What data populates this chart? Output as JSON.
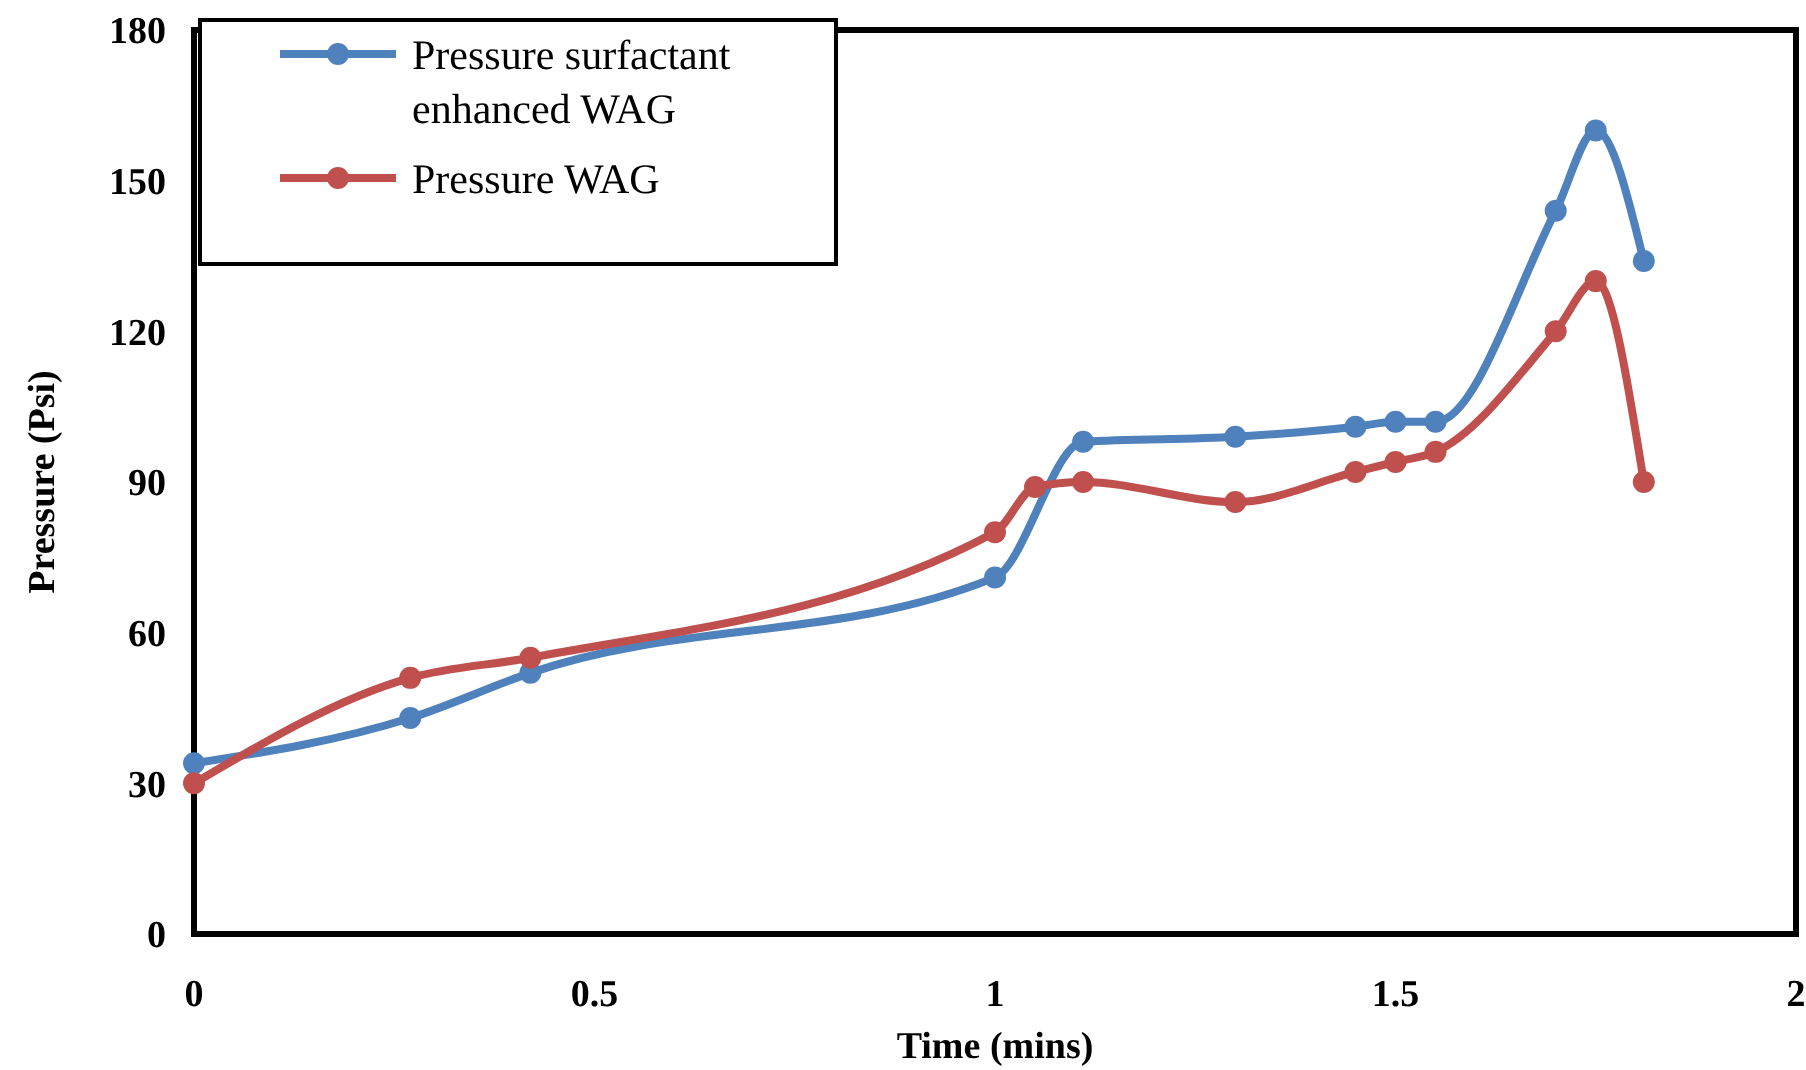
{
  "chart_data": {
    "type": "line",
    "xlabel": "Time (mins)",
    "ylabel": "Pressure (Psi)",
    "xlim": [
      0,
      2
    ],
    "xticks": [
      0,
      0.5,
      1,
      1.5,
      2
    ],
    "ylim": [
      0,
      180
    ],
    "yticks": [
      0,
      30,
      60,
      90,
      120,
      150,
      180
    ],
    "grid": false,
    "legend": "top left",
    "marker": "circle",
    "line_style": "solid",
    "series": [
      {
        "name": "Pressure surfactant enhanced WAG",
        "color": "#4f81bd",
        "x": [
          0,
          0.27,
          0.42,
          1.0,
          1.11,
          1.3,
          1.45,
          1.5,
          1.55,
          1.7,
          1.75,
          1.81
        ],
        "values": [
          34,
          43,
          52,
          71,
          98,
          99,
          101,
          102,
          102,
          144,
          160,
          134
        ]
      },
      {
        "name": "Pressure WAG",
        "color": "#c0504d",
        "x": [
          0,
          0.27,
          0.42,
          1.0,
          1.05,
          1.11,
          1.3,
          1.45,
          1.5,
          1.55,
          1.7,
          1.75,
          1.81
        ],
        "values": [
          30,
          51,
          55,
          80,
          89,
          90,
          86,
          92,
          94,
          96,
          120,
          130,
          90
        ]
      }
    ]
  }
}
